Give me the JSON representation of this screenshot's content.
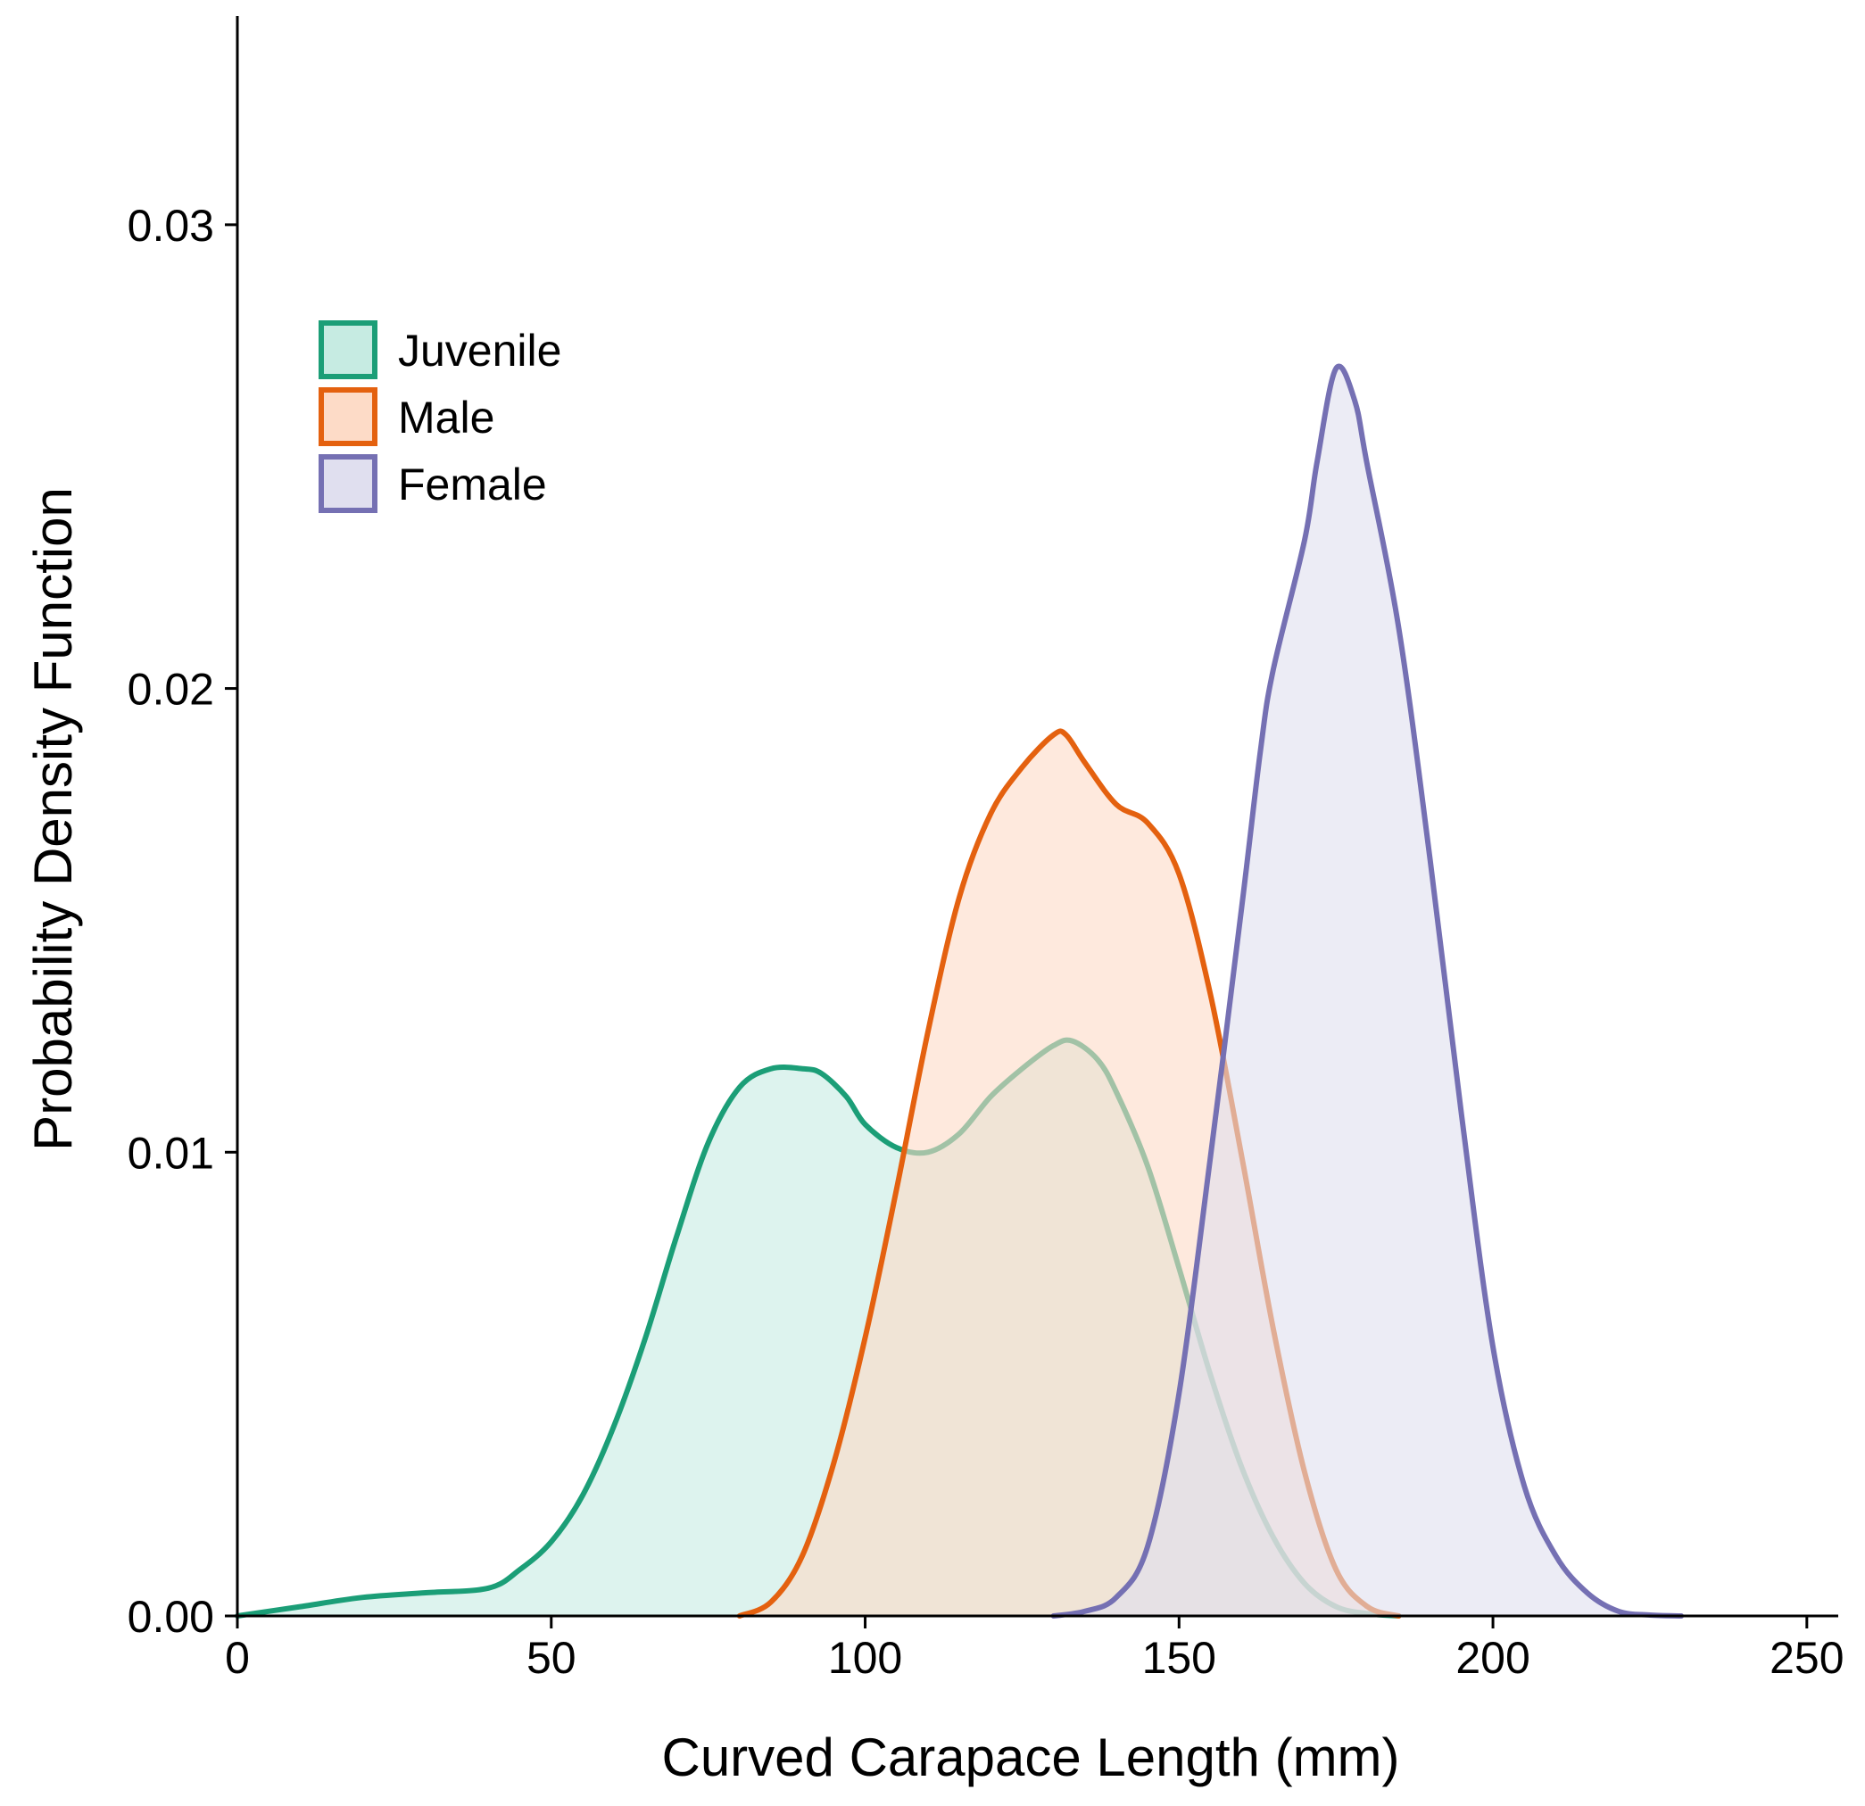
{
  "chart_data": {
    "type": "area",
    "title": "",
    "xlabel": "Curved Carapace Length (mm)",
    "ylabel": "Probability Density Function",
    "xlim": [
      0,
      255
    ],
    "ylim": [
      0,
      0.0345
    ],
    "xticks": [
      0,
      50,
      100,
      150,
      200,
      250
    ],
    "xtick_labels": [
      "0",
      "50",
      "100",
      "150",
      "200",
      "250"
    ],
    "yticks": [
      0,
      0.01,
      0.02,
      0.03
    ],
    "ytick_labels": [
      "0.00",
      "0.01",
      "0.02",
      "0.03"
    ],
    "legend_position": "top-left",
    "grid": false,
    "series": [
      {
        "name": "Juvenile",
        "stroke": "#1b9e77",
        "fill": "#c6ebe2",
        "x": [
          0,
          10,
          20,
          30,
          40,
          45,
          50,
          55,
          60,
          65,
          70,
          75,
          80,
          85,
          90,
          93,
          97,
          100,
          105,
          110,
          115,
          120,
          125,
          130,
          133,
          137,
          140,
          145,
          150,
          155,
          160,
          165,
          170,
          175,
          180,
          185
        ],
        "y": [
          0.0,
          0.0002,
          0.0004,
          0.0005,
          0.0006,
          0.001,
          0.0016,
          0.0026,
          0.0041,
          0.006,
          0.0082,
          0.0102,
          0.0114,
          0.0118,
          0.0118,
          0.0117,
          0.0112,
          0.0106,
          0.0101,
          0.01,
          0.0104,
          0.0112,
          0.0118,
          0.0123,
          0.0124,
          0.012,
          0.0113,
          0.0097,
          0.0075,
          0.0052,
          0.0032,
          0.0017,
          0.0007,
          0.0002,
          5e-05,
          0.0
        ]
      },
      {
        "name": "Male",
        "stroke": "#e4610f",
        "fill": "#fddbc7",
        "x": [
          80,
          85,
          90,
          95,
          100,
          105,
          110,
          115,
          120,
          125,
          130,
          132,
          135,
          140,
          145,
          150,
          155,
          160,
          165,
          170,
          175,
          180,
          185
        ],
        "y": [
          0.0,
          0.0003,
          0.0013,
          0.0033,
          0.006,
          0.0092,
          0.0126,
          0.0155,
          0.0173,
          0.0183,
          0.019,
          0.019,
          0.0184,
          0.0175,
          0.0171,
          0.016,
          0.0134,
          0.0099,
          0.0062,
          0.0031,
          0.001,
          0.0002,
          0.0
        ]
      },
      {
        "name": "Female",
        "stroke": "#7570b3",
        "fill": "#e0dfef",
        "x": [
          130,
          135,
          140,
          145,
          150,
          155,
          160,
          163,
          165,
          170,
          172,
          175,
          178,
          180,
          185,
          190,
          195,
          200,
          205,
          210,
          215,
          220,
          225,
          230
        ],
        "y": [
          0.0,
          0.0001,
          0.0004,
          0.0015,
          0.0048,
          0.0099,
          0.0153,
          0.0187,
          0.0204,
          0.0232,
          0.0249,
          0.0269,
          0.0262,
          0.0248,
          0.0213,
          0.0163,
          0.0108,
          0.0058,
          0.0028,
          0.0013,
          0.0005,
          0.0001,
          2e-05,
          0.0
        ]
      }
    ]
  }
}
